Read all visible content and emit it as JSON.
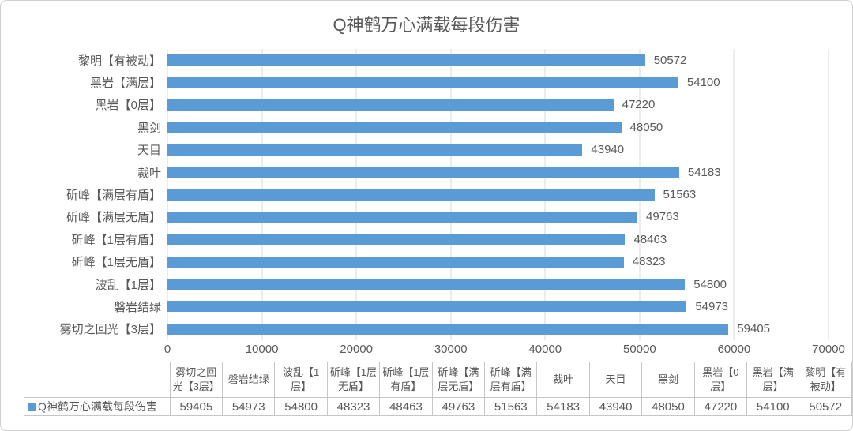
{
  "colors": {
    "bar": "#5B9BD5",
    "grid": "#D9D9D9",
    "text": "#595959",
    "table_border": "#C6C6C6",
    "frame_border": "#CFCFCF"
  },
  "chart_data": {
    "type": "bar",
    "orientation": "horizontal",
    "title": "Q神鹤万心满载每段伤害",
    "series_name": "Q神鹤万心满载每段伤害",
    "categories_top_to_bottom": [
      "黎明【有被动】",
      "黑岩【满层】",
      "黑岩【0层】",
      "黑剑",
      "天目",
      "裁叶",
      "斫峰【满层有盾】",
      "斫峰【满层无盾】",
      "斫峰【1层有盾】",
      "斫峰【1层无盾】",
      "波乱【1层】",
      "磐岩结绿",
      "雾切之回光【3层】"
    ],
    "values": [
      50572,
      54100,
      47220,
      48050,
      43940,
      54183,
      51563,
      49763,
      48463,
      48323,
      54800,
      54973,
      59405
    ],
    "xlabel": "",
    "ylabel": "",
    "xlim": [
      0,
      70000
    ],
    "x_ticks": [
      0,
      10000,
      20000,
      30000,
      40000,
      50000,
      60000,
      70000
    ],
    "grid": true,
    "data_labels": true,
    "legend_position": "bottom-table"
  },
  "data_table": {
    "legend_label": "Q神鹤万心满载每段伤害",
    "columns": [
      "雾切之回光【3层】",
      "磐岩结绿",
      "波乱【1层】",
      "斫峰【1层无盾】",
      "斫峰【1层有盾】",
      "斫峰【满层无盾】",
      "斫峰【满层有盾】",
      "裁叶",
      "天目",
      "黑剑",
      "黑岩【0层】",
      "黑岩【满层】",
      "黎明【有被动】"
    ],
    "values": [
      59405,
      54973,
      54800,
      48323,
      48463,
      49763,
      51563,
      54183,
      43940,
      48050,
      47220,
      54100,
      50572
    ]
  }
}
